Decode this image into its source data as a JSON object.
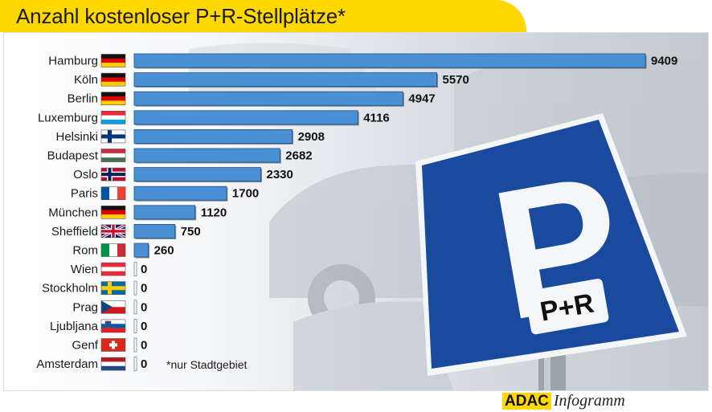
{
  "title": "Anzahl kostenloser P+R-Stellplätze*",
  "footnote": "*nur Stadtgebiet",
  "sign": {
    "big_letter": "P",
    "plate_text": "P+R",
    "color": "#1a4a9e"
  },
  "brand": {
    "logo": "ADAC",
    "suffix": "Infogramm",
    "accent": "#ffd800"
  },
  "chart_data": {
    "type": "bar",
    "orientation": "horizontal",
    "title": "Anzahl kostenloser P+R-Stellplätze*",
    "xlabel": "",
    "ylabel": "",
    "grid": false,
    "bar_color": "#4a90d4",
    "xlim": [
      0,
      9409
    ],
    "categories": [
      "Hamburg",
      "Köln",
      "Berlin",
      "Luxemburg",
      "Helsinki",
      "Budapest",
      "Oslo",
      "Paris",
      "München",
      "Sheffield",
      "Rom",
      "Wien",
      "Stockholm",
      "Prag",
      "Ljubljana",
      "Genf",
      "Amsterdam"
    ],
    "values": [
      9409,
      5570,
      4947,
      4116,
      2908,
      2682,
      2330,
      1700,
      1120,
      750,
      260,
      0,
      0,
      0,
      0,
      0,
      0
    ],
    "value_labels": [
      "9409",
      "5570",
      "4947",
      "4116",
      "2908",
      "2682",
      "2330",
      "1700",
      "1120",
      "750",
      "260",
      "0",
      "0",
      "0",
      "0",
      "0",
      "0"
    ],
    "flags": [
      "germany-flag-icon",
      "germany-flag-icon",
      "germany-flag-icon",
      "luxembourg-flag-icon",
      "finland-flag-icon",
      "hungary-flag-icon",
      "norway-flag-icon",
      "france-flag-icon",
      "germany-flag-icon",
      "uk-flag-icon",
      "italy-flag-icon",
      "austria-flag-icon",
      "sweden-flag-icon",
      "czech-flag-icon",
      "slovenia-flag-icon",
      "switzerland-flag-icon",
      "netherlands-flag-icon"
    ]
  }
}
